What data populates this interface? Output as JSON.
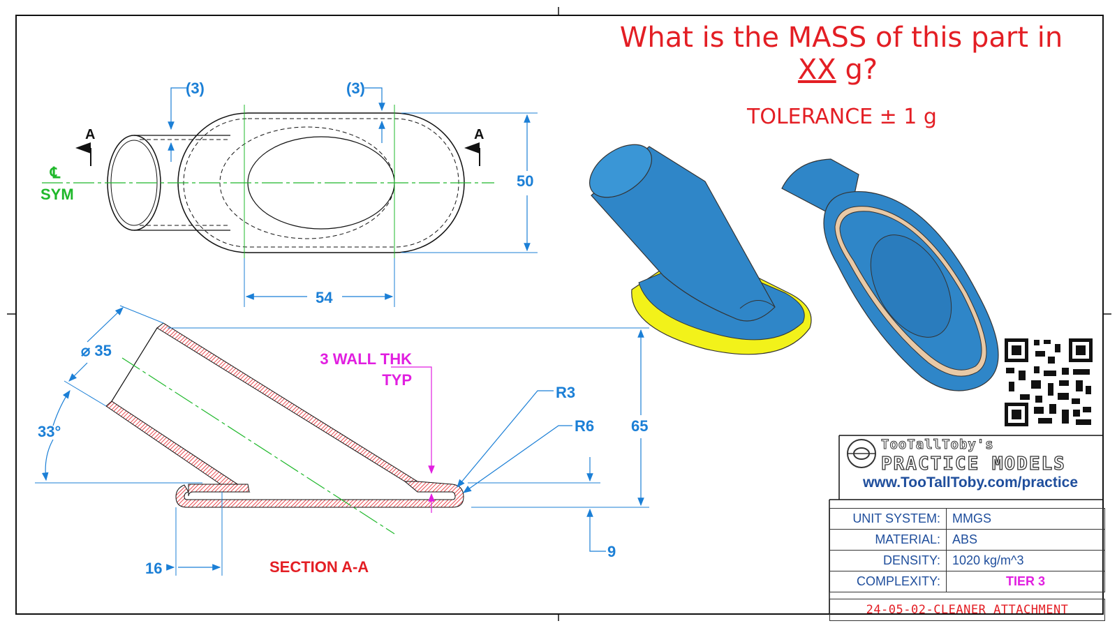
{
  "question": {
    "line1": "What is the MASS of this part in",
    "line2_underlined": "XX",
    "line2_rest": " g?",
    "tolerance": "TOLERANCE ± 1 g"
  },
  "top_view": {
    "section_marker_left": "A",
    "section_marker_right": "A",
    "centerline_symbol": "℄",
    "sym_label": "SYM",
    "dim_wall_left": "(3)",
    "dim_wall_right": "(3)",
    "dim_height": "50",
    "dim_width": "54"
  },
  "section_view": {
    "dim_diameter": "⌀ 35",
    "dim_angle": "33°",
    "wall_note_line1": "3 WALL THK",
    "wall_note_line2": "TYP",
    "dim_r3": "R3",
    "dim_r6": "R6",
    "dim_height": "65",
    "dim_offset": "16",
    "dim_base": "9",
    "title": "SECTION A-A"
  },
  "title_block": {
    "brand_line1": "TooTallToby's",
    "brand_line2": "PRACTICE MODELS",
    "url": "www.TooTallToby.com/practice",
    "rows": [
      {
        "label": "UNIT SYSTEM:",
        "value": "MMGS"
      },
      {
        "label": "MATERIAL:",
        "value": "ABS"
      },
      {
        "label": "DENSITY:",
        "value": "1020 kg/m^3"
      },
      {
        "label": "COMPLEXITY:",
        "value": "TIER 3"
      }
    ],
    "part_name": "24-05-02-CLEANER ATTACHMENT"
  },
  "colors": {
    "dimension": "#1b7fd6",
    "question": "#e31e24",
    "note": "#e11fe0",
    "centerline": "#1fb82b",
    "part_blue": "#2f86c8",
    "part_yellow": "#f2f21a"
  }
}
